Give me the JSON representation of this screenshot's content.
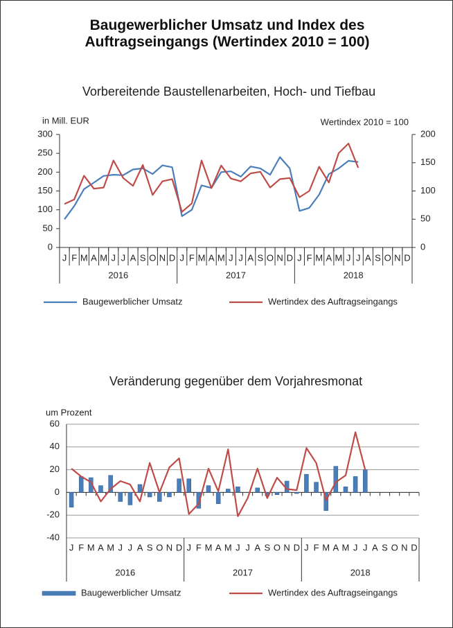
{
  "header": {
    "title": "Baugewerblicher Umsatz und Index des Auftragseingangs (Wertindex 2010 = 100)"
  },
  "chart_data": [
    {
      "type": "line",
      "title": "Vorbereitende Baustellenarbeiten, Hoch- und Tiefbau",
      "ylabel": "in Mill. EUR",
      "y2label": "Wertindex 2010 = 100",
      "categories": [
        "J",
        "F",
        "M",
        "A",
        "M",
        "J",
        "J",
        "A",
        "S",
        "O",
        "N",
        "D",
        "J",
        "F",
        "M",
        "A",
        "M",
        "J",
        "J",
        "A",
        "S",
        "O",
        "N",
        "D",
        "J",
        "F",
        "M",
        "A",
        "M",
        "J",
        "J",
        "A",
        "S",
        "O",
        "N",
        "D"
      ],
      "groups": [
        "2016",
        "2017",
        "2018"
      ],
      "ylim": [
        0,
        300
      ],
      "yticks": [
        0,
        50,
        100,
        150,
        200,
        250,
        300
      ],
      "y2lim": [
        0,
        200
      ],
      "y2ticks": [
        0,
        50,
        100,
        150,
        200
      ],
      "grid": false,
      "series": [
        {
          "name": "Baugewerblicher Umsatz",
          "color": "#4a7ebb",
          "type": "line",
          "values": [
            75,
            110,
            155,
            172,
            190,
            193,
            192,
            207,
            210,
            195,
            218,
            213,
            83,
            100,
            165,
            158,
            200,
            202,
            188,
            215,
            210,
            193,
            240,
            210,
            97,
            105,
            140,
            195,
            210,
            230,
            227,
            null,
            null,
            null,
            null,
            null
          ]
        },
        {
          "name": "Wertindex des Auftragseingangs",
          "color": "#be4b48",
          "type": "line",
          "axis": "y2",
          "values": [
            77,
            85,
            127,
            104,
            106,
            154,
            123,
            109,
            146,
            93,
            117,
            121,
            63,
            78,
            154,
            105,
            145,
            122,
            117,
            131,
            134,
            106,
            121,
            123,
            89,
            100,
            143,
            115,
            167,
            184,
            141,
            null,
            null,
            null,
            null,
            null
          ]
        }
      ]
    },
    {
      "type": "bar",
      "title": "Veränderung gegenüber dem Vorjahresmonat",
      "ylabel": "um Prozent",
      "categories": [
        "J",
        "F",
        "M",
        "A",
        "M",
        "J",
        "J",
        "A",
        "S",
        "O",
        "N",
        "D",
        "J",
        "F",
        "M",
        "A",
        "M",
        "J",
        "J",
        "A",
        "S",
        "O",
        "N",
        "D",
        "J",
        "F",
        "M",
        "A",
        "M",
        "J",
        "J",
        "A",
        "S",
        "O",
        "N",
        "D"
      ],
      "groups": [
        "2016",
        "2017",
        "2018"
      ],
      "ylim": [
        -40,
        60
      ],
      "yticks": [
        -40,
        -20,
        0,
        20,
        40,
        60
      ],
      "grid": true,
      "series": [
        {
          "name": "Baugewerblicher Umsatz",
          "color": "#4a7ebb",
          "type": "bar",
          "values": [
            -13,
            14,
            13,
            6,
            15,
            -8,
            -11,
            7,
            -4,
            -8,
            -4,
            12,
            12,
            -14,
            6,
            -10,
            3,
            5,
            0,
            4,
            -3,
            -2,
            10,
            -1,
            16,
            9,
            -16,
            23,
            5,
            14,
            20,
            null,
            null,
            null,
            null,
            null
          ]
        },
        {
          "name": "Wertindex des Auftragseingangs",
          "color": "#be4b48",
          "type": "line",
          "values": [
            21,
            14,
            9,
            -8,
            3,
            10,
            7,
            -8,
            26,
            0,
            22,
            30,
            -19,
            -10,
            21,
            1,
            38,
            -21,
            -5,
            21,
            -5,
            13,
            3,
            2,
            39,
            26,
            -7,
            9,
            15,
            53,
            20,
            null,
            null,
            null,
            null,
            null
          ]
        }
      ]
    }
  ]
}
